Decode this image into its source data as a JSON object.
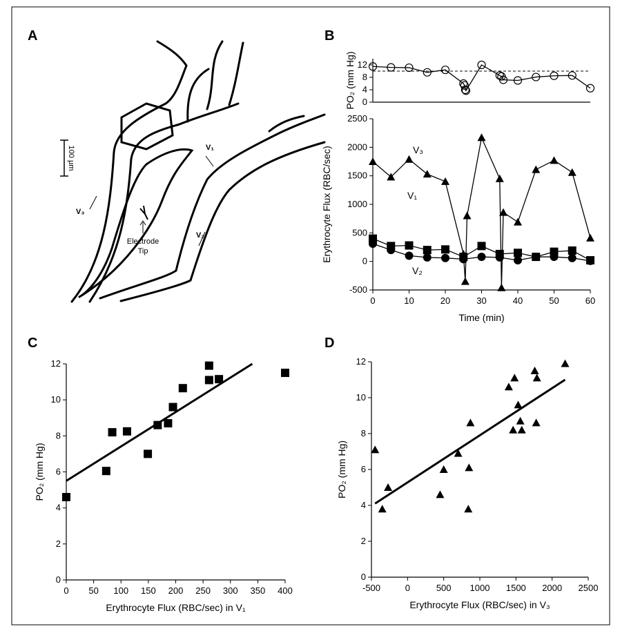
{
  "diagram": {
    "panel": "A",
    "scale_bar": "100 µm",
    "vessel_labels": [
      "V₁",
      "V₂",
      "V₃"
    ],
    "electrode_label": [
      "Electrode",
      "Tip"
    ]
  },
  "chart_data": [
    {
      "type": "line",
      "panel": "B",
      "ylabel": "PO₂ (mm Hg)",
      "xlim": [
        0,
        60
      ],
      "ylim": [
        0,
        14
      ],
      "yticks": [
        0,
        4,
        8,
        12
      ],
      "reference_line": 10,
      "marker": "open-circle",
      "color": "#000000",
      "x": [
        0,
        5,
        10,
        15,
        20,
        25,
        25.3,
        25.5,
        25.7,
        30,
        35,
        35.5,
        36,
        40,
        45,
        50,
        55,
        60
      ],
      "values": [
        11.5,
        11.2,
        11.1,
        9.6,
        10.4,
        6.0,
        5.4,
        4.0,
        3.7,
        12.0,
        8.6,
        8.3,
        7.2,
        7.0,
        8.1,
        8.5,
        8.6,
        4.5
      ]
    },
    {
      "type": "line",
      "xlabel": "Time (min)",
      "ylabel": "Erythrocyte Flux (RBC/sec)",
      "xlim": [
        0,
        60
      ],
      "xticks": [
        0,
        10,
        20,
        30,
        40,
        50,
        60
      ],
      "ylim": [
        -500,
        2500
      ],
      "yticks": [
        -500,
        0,
        500,
        1000,
        1500,
        2000,
        2500
      ],
      "series": [
        {
          "name": "V₃",
          "marker": "triangle",
          "color": "#000000",
          "x": [
            0,
            5,
            10,
            15,
            20,
            25,
            25.5,
            26,
            30,
            35,
            35.5,
            36,
            40,
            45,
            50,
            55,
            60
          ],
          "values": [
            1750,
            1480,
            1790,
            1530,
            1400,
            130,
            -350,
            800,
            2170,
            1450,
            -460,
            860,
            690,
            1610,
            1770,
            1560,
            410
          ]
        },
        {
          "name": "V₁",
          "marker": "square",
          "color": "#000000",
          "x": [
            0,
            5,
            10,
            15,
            20,
            25,
            30,
            35,
            40,
            45,
            50,
            55,
            60
          ],
          "values": [
            400,
            270,
            280,
            200,
            210,
            80,
            270,
            130,
            150,
            80,
            170,
            190,
            20
          ]
        },
        {
          "name": "V₂",
          "marker": "circle",
          "color": "#000000",
          "x": [
            0,
            5,
            10,
            15,
            20,
            25,
            30,
            35,
            40,
            45,
            50,
            55,
            60
          ],
          "values": [
            310,
            200,
            100,
            70,
            60,
            40,
            80,
            70,
            20,
            80,
            80,
            60,
            10
          ]
        }
      ]
    },
    {
      "type": "scatter",
      "panel": "C",
      "xlabel": "Erythrocyte Flux (RBC/sec) in V₁",
      "ylabel": "PO₂ (mm Hg)",
      "marker": "square",
      "color": "#000000",
      "xlim": [
        0,
        400
      ],
      "xticks": [
        0,
        50,
        100,
        150,
        200,
        250,
        300,
        350,
        400
      ],
      "ylim": [
        0,
        12
      ],
      "yticks": [
        0,
        2,
        4,
        6,
        8,
        10,
        12
      ],
      "x": [
        0,
        73,
        84,
        111,
        149,
        167,
        186,
        195,
        213,
        261,
        261,
        279,
        400
      ],
      "values": [
        4.6,
        6.05,
        8.2,
        8.25,
        7.0,
        8.6,
        8.7,
        9.6,
        10.65,
        11.1,
        11.9,
        11.15,
        11.5
      ],
      "fit": {
        "x": [
          0,
          340
        ],
        "values": [
          5.5,
          12
        ]
      }
    },
    {
      "type": "scatter",
      "panel": "D",
      "xlabel": "Erythrocyte Flux (RBC/sec) in V₃",
      "ylabel": "PO₂ (mm Hg)",
      "marker": "triangle",
      "color": "#000000",
      "xlim": [
        -500,
        2500
      ],
      "xticks": [
        -500,
        0,
        500,
        1000,
        1500,
        2000,
        2500
      ],
      "ylim": [
        0,
        12
      ],
      "yticks": [
        0,
        2,
        4,
        6,
        8,
        10,
        12
      ],
      "x": [
        -450,
        -350,
        -270,
        450,
        500,
        700,
        850,
        840,
        870,
        1400,
        1460,
        1480,
        1530,
        1560,
        1580,
        1760,
        1790,
        1780,
        2180
      ],
      "values": [
        7.1,
        3.8,
        5.0,
        4.6,
        6.0,
        6.9,
        6.1,
        3.8,
        8.6,
        10.6,
        8.2,
        11.1,
        9.6,
        8.7,
        8.2,
        11.5,
        11.1,
        8.6,
        11.9
      ],
      "fit": {
        "x": [
          -450,
          2180
        ],
        "values": [
          4.1,
          11.0
        ]
      }
    }
  ]
}
